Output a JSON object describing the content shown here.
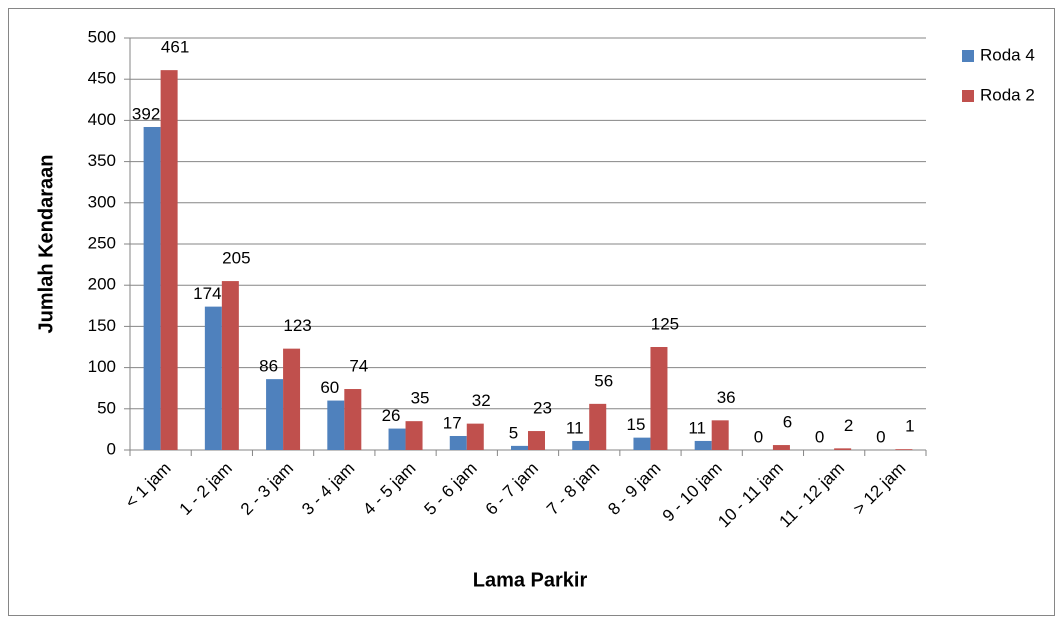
{
  "chart_data": {
    "type": "bar",
    "xlabel": "Lama Parkir",
    "ylabel": "Jumlah Kendaraan",
    "categories": [
      "< 1 jam",
      "1 - 2 jam",
      "2 - 3 jam",
      "3 - 4 jam",
      "4 - 5 jam",
      "5 - 6 jam",
      "6 - 7 jam",
      "7 - 8 jam",
      "8 - 9 jam",
      "9 - 10 jam",
      "10 - 11 jam",
      "11 - 12 jam",
      "> 12 jam"
    ],
    "series": [
      {
        "name": "Roda 4",
        "color": "#4f81bd",
        "values": [
          392,
          174,
          86,
          60,
          26,
          17,
          5,
          11,
          15,
          11,
          0,
          0,
          0
        ]
      },
      {
        "name": "Roda 2",
        "color": "#c0504d",
        "values": [
          461,
          205,
          123,
          74,
          35,
          32,
          23,
          56,
          125,
          36,
          6,
          2,
          1
        ]
      }
    ],
    "ylim": [
      0,
      500
    ],
    "yticks": [
      0,
      50,
      100,
      150,
      200,
      250,
      300,
      350,
      400,
      450,
      500
    ],
    "grid": true,
    "legend": "right"
  }
}
